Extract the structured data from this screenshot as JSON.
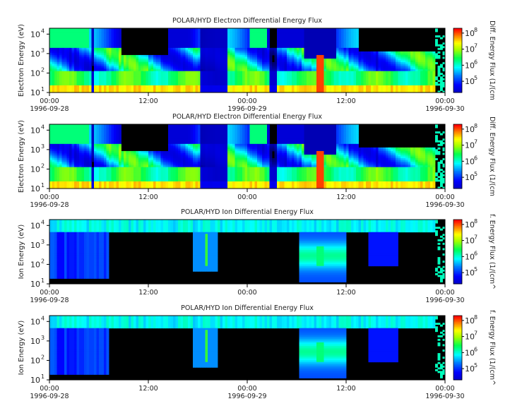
{
  "chart_data": [
    {
      "type": "heatmap",
      "title": "POLAR/HYD  Electron Differential Energy Flux",
      "ylabel": "Electron Energy (eV)",
      "yscale": "log",
      "ylim": [
        10,
        20000
      ],
      "y_ticks": [
        {
          "base": "10",
          "exp": "1"
        },
        {
          "base": "10",
          "exp": "2"
        },
        {
          "base": "10",
          "exp": "3"
        },
        {
          "base": "10",
          "exp": "4"
        }
      ],
      "x_ticks": [
        {
          "time": "00:00",
          "date": "1996-09-28"
        },
        {
          "time": "12:00",
          "date": ""
        },
        {
          "time": "00:00",
          "date": "1996-09-29"
        },
        {
          "time": "12:00",
          "date": ""
        },
        {
          "time": "00:00",
          "date": "1996-09-30"
        }
      ],
      "xlim": [
        "1996-09-28T00:00",
        "1996-09-30T00:00"
      ],
      "colorbar": {
        "label": "Diff. Energy Flux (1/(cm",
        "scale": "log",
        "range": [
          20000,
          200000000
        ],
        "ticks": [
          {
            "base": "10",
            "exp": "5"
          },
          {
            "base": "10",
            "exp": "6"
          },
          {
            "base": "10",
            "exp": "7"
          },
          {
            "base": "10",
            "exp": "8"
          }
        ]
      },
      "species": "electron"
    },
    {
      "type": "heatmap",
      "title": "POLAR/HYD  Electron Differential Energy Flux",
      "ylabel": "Electron Energy (eV)",
      "yscale": "log",
      "ylim": [
        10,
        20000
      ],
      "y_ticks": [
        {
          "base": "10",
          "exp": "1"
        },
        {
          "base": "10",
          "exp": "2"
        },
        {
          "base": "10",
          "exp": "3"
        },
        {
          "base": "10",
          "exp": "4"
        }
      ],
      "x_ticks": [
        {
          "time": "00:00",
          "date": "1996-09-28"
        },
        {
          "time": "12:00",
          "date": ""
        },
        {
          "time": "00:00",
          "date": ""
        },
        {
          "time": "12:00",
          "date": ""
        },
        {
          "time": "00:00",
          "date": "1996-09-30"
        }
      ],
      "xlim": [
        "1996-09-28T00:00",
        "1996-09-30T00:00"
      ],
      "colorbar": {
        "label": "Diff. Energy Flux (1/(cm",
        "scale": "log",
        "range": [
          20000,
          200000000
        ],
        "ticks": [
          {
            "base": "10",
            "exp": "5"
          },
          {
            "base": "10",
            "exp": "6"
          },
          {
            "base": "10",
            "exp": "7"
          },
          {
            "base": "10",
            "exp": "8"
          }
        ]
      },
      "species": "electron"
    },
    {
      "type": "heatmap",
      "title": "POLAR/HYD  Ion Differential Energy Flux",
      "ylabel": "Ion Energy (eV)",
      "yscale": "log",
      "ylim": [
        10,
        20000
      ],
      "y_ticks": [
        {
          "base": "10",
          "exp": "1"
        },
        {
          "base": "10",
          "exp": "2"
        },
        {
          "base": "10",
          "exp": "3"
        },
        {
          "base": "10",
          "exp": "4"
        }
      ],
      "x_ticks": [
        {
          "time": "00:00",
          "date": "1996-09-28"
        },
        {
          "time": "12:00",
          "date": ""
        },
        {
          "time": "00:00",
          "date": ""
        },
        {
          "time": "12:00",
          "date": ""
        },
        {
          "time": "00:00",
          "date": "1996-09-30"
        }
      ],
      "xlim": [
        "1996-09-28T00:00",
        "1996-09-30T00:00"
      ],
      "colorbar": {
        "label": "f. Energy Flux (1/(cm^",
        "scale": "log",
        "range": [
          20000,
          200000000
        ],
        "ticks": [
          {
            "base": "10",
            "exp": "5"
          },
          {
            "base": "10",
            "exp": "6"
          },
          {
            "base": "10",
            "exp": "7"
          },
          {
            "base": "10",
            "exp": "8"
          }
        ]
      },
      "species": "ion"
    },
    {
      "type": "heatmap",
      "title": "POLAR/HYD  Ion Differential Energy Flux",
      "ylabel": "Ion Energy (eV)",
      "yscale": "log",
      "ylim": [
        10,
        20000
      ],
      "y_ticks": [
        {
          "base": "10",
          "exp": "1"
        },
        {
          "base": "10",
          "exp": "2"
        },
        {
          "base": "10",
          "exp": "3"
        },
        {
          "base": "10",
          "exp": "4"
        }
      ],
      "x_ticks": [
        {
          "time": "00:00",
          "date": "1996-09-28"
        },
        {
          "time": "12:00",
          "date": ""
        },
        {
          "time": "00:00",
          "date": "1996-09-29"
        },
        {
          "time": "12:00",
          "date": ""
        },
        {
          "time": "00:00",
          "date": "1996-09-30"
        }
      ],
      "xlim": [
        "1996-09-28T00:00",
        "1996-09-30T00:00"
      ],
      "colorbar": {
        "label": "f. Energy Flux (1/(cm^",
        "scale": "log",
        "range": [
          20000,
          200000000
        ],
        "ticks": [
          {
            "base": "10",
            "exp": "5"
          },
          {
            "base": "10",
            "exp": "6"
          },
          {
            "base": "10",
            "exp": "7"
          },
          {
            "base": "10",
            "exp": "8"
          }
        ]
      },
      "species": "ion"
    }
  ],
  "colors": {
    "background": "#000000",
    "low": "#0000c8",
    "mid": "#00ff88",
    "high": "#ff0000"
  }
}
